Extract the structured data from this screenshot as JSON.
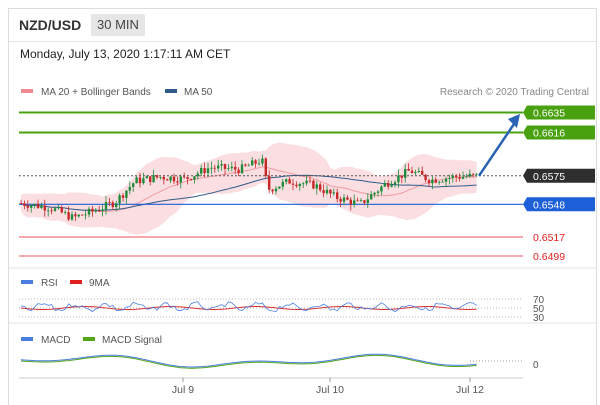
{
  "header": {
    "pair": "NZD/USD",
    "timeframe": "30 MIN"
  },
  "datetime": "Monday, July 13, 2020 1:17:11 AM CET",
  "legend": {
    "bollinger": "MA 20 + Bollinger Bands",
    "ma50": "MA 50",
    "credit": "Research © 2020 Trading Central"
  },
  "rsi_legend": {
    "rsi": "RSI",
    "ma": "9MA"
  },
  "macd_legend": {
    "macd": "MACD",
    "signal": "MACD Signal"
  },
  "colors": {
    "resistance": "#4aa10f",
    "current": "#2e2e2e",
    "pivot": "#1d5fd6",
    "support": "#e8535b",
    "candle_up": "#1f8a3a",
    "candle_down": "#c62828",
    "bollinger": "#f7b6bd",
    "ma50": "#2f5b8a",
    "arrow": "#2a63b3"
  },
  "chart_data": [
    {
      "type": "candlestick",
      "title": "",
      "ylim": [
        0.6485,
        0.6648
      ],
      "price_levels": [
        {
          "label": "0.6635",
          "value": 0.6635,
          "role": "resistance"
        },
        {
          "label": "0.6616",
          "value": 0.6616,
          "role": "resistance"
        },
        {
          "label": "0.6575",
          "value": 0.6575,
          "role": "current"
        },
        {
          "label": "0.6548",
          "value": 0.6548,
          "role": "pivot"
        },
        {
          "label": "0.6517",
          "value": 0.6517,
          "role": "support"
        },
        {
          "label": "0.6499",
          "value": 0.6499,
          "role": "support"
        }
      ],
      "x_ticks": [
        "Jul 9",
        "Jul 10",
        "Jul 12"
      ],
      "series": [
        {
          "name": "MA 20 + Bollinger Bands"
        },
        {
          "name": "MA 50"
        }
      ],
      "annotation": "bullish arrow from 0.6575 toward 0.6635"
    },
    {
      "type": "line",
      "series": [
        {
          "name": "RSI"
        },
        {
          "name": "9MA"
        }
      ],
      "y_ticks": [
        "70",
        "50",
        "30"
      ]
    },
    {
      "type": "line",
      "series": [
        {
          "name": "MACD"
        },
        {
          "name": "MACD Signal"
        }
      ],
      "y_ticks": [
        "0"
      ]
    }
  ]
}
